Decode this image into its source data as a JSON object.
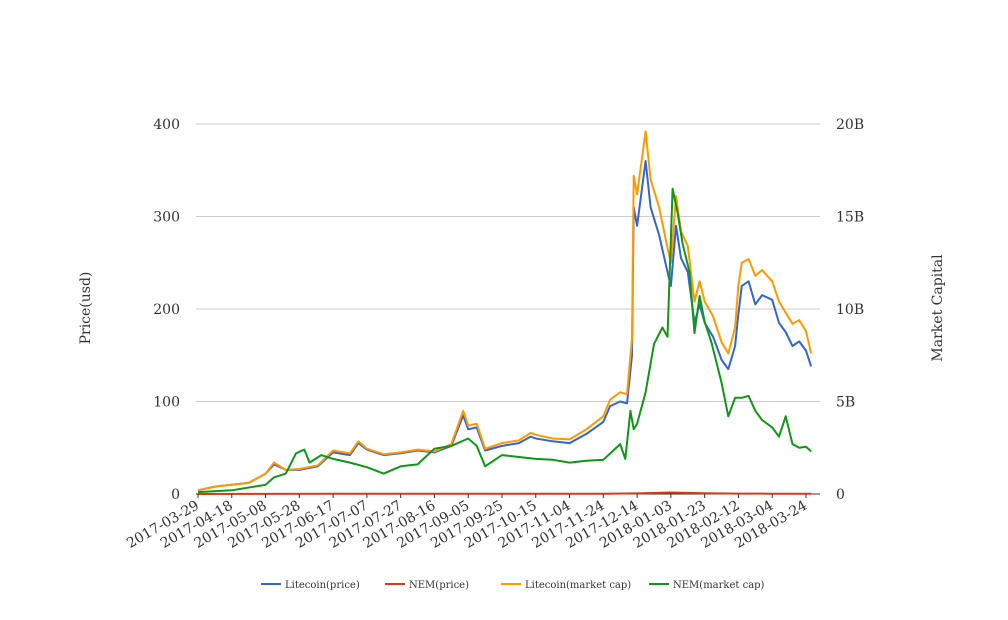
{
  "chart_data": {
    "type": "line",
    "ylabel_left": "Price(usd)",
    "ylabel_right": "Market Capital",
    "x_tick_labels": [
      "2017-03-29",
      "2017-04-18",
      "2017-05-08",
      "2017-05-28",
      "2017-06-17",
      "2017-07-07",
      "2017-07-27",
      "2017-08-16",
      "2017-09-05",
      "2017-09-25",
      "2017-10-15",
      "2017-11-04",
      "2017-11-24",
      "2017-12-14",
      "2018-01-03",
      "2018-01-23",
      "2018-02-12",
      "2018-03-04",
      "2018-03-24"
    ],
    "y_left": {
      "range": [
        0,
        400
      ],
      "ticks": [
        0,
        100,
        200,
        300,
        400
      ],
      "tick_labels": [
        "0",
        "100",
        "200",
        "300",
        "400"
      ]
    },
    "y_right": {
      "range": [
        0,
        20000000000
      ],
      "ticks": [
        0,
        5000000000,
        10000000000,
        15000000000,
        20000000000
      ],
      "tick_labels": [
        "0",
        "5B",
        "10B",
        "15B",
        "20B"
      ]
    },
    "grid": true,
    "legend_position": "bottom",
    "series": [
      {
        "name": "Litecoin(price)",
        "axis": "left",
        "color": "#3366cc",
        "points": [
          [
            "2017-03-29",
            4
          ],
          [
            "2017-04-08",
            8
          ],
          [
            "2017-04-18",
            10
          ],
          [
            "2017-04-28",
            12
          ],
          [
            "2017-05-08",
            22
          ],
          [
            "2017-05-13",
            32
          ],
          [
            "2017-05-20",
            26
          ],
          [
            "2017-05-28",
            26
          ],
          [
            "2017-06-08",
            30
          ],
          [
            "2017-06-17",
            45
          ],
          [
            "2017-06-27",
            42
          ],
          [
            "2017-07-02",
            55
          ],
          [
            "2017-07-07",
            48
          ],
          [
            "2017-07-17",
            42
          ],
          [
            "2017-07-27",
            44
          ],
          [
            "2017-08-06",
            47
          ],
          [
            "2017-08-16",
            45
          ],
          [
            "2017-08-26",
            52
          ],
          [
            "2017-09-02",
            85
          ],
          [
            "2017-09-05",
            70
          ],
          [
            "2017-09-10",
            72
          ],
          [
            "2017-09-15",
            47
          ],
          [
            "2017-09-25",
            52
          ],
          [
            "2017-10-05",
            55
          ],
          [
            "2017-10-12",
            62
          ],
          [
            "2017-10-15",
            60
          ],
          [
            "2017-10-25",
            57
          ],
          [
            "2017-11-04",
            55
          ],
          [
            "2017-11-14",
            65
          ],
          [
            "2017-11-24",
            78
          ],
          [
            "2017-11-28",
            95
          ],
          [
            "2017-12-04",
            100
          ],
          [
            "2017-12-08",
            98
          ],
          [
            "2017-12-11",
            150
          ],
          [
            "2017-12-12",
            310
          ],
          [
            "2017-12-14",
            290
          ],
          [
            "2017-12-19",
            360
          ],
          [
            "2017-12-22",
            310
          ],
          [
            "2017-12-27",
            280
          ],
          [
            "2018-01-01",
            240
          ],
          [
            "2018-01-03",
            225
          ],
          [
            "2018-01-06",
            290
          ],
          [
            "2018-01-09",
            255
          ],
          [
            "2018-01-13",
            240
          ],
          [
            "2018-01-17",
            185
          ],
          [
            "2018-01-20",
            205
          ],
          [
            "2018-01-23",
            185
          ],
          [
            "2018-01-28",
            170
          ],
          [
            "2018-02-02",
            145
          ],
          [
            "2018-02-06",
            135
          ],
          [
            "2018-02-10",
            160
          ],
          [
            "2018-02-12",
            195
          ],
          [
            "2018-02-14",
            225
          ],
          [
            "2018-02-18",
            230
          ],
          [
            "2018-02-22",
            205
          ],
          [
            "2018-02-26",
            215
          ],
          [
            "2018-03-04",
            210
          ],
          [
            "2018-03-08",
            185
          ],
          [
            "2018-03-12",
            175
          ],
          [
            "2018-03-16",
            160
          ],
          [
            "2018-03-20",
            165
          ],
          [
            "2018-03-24",
            155
          ],
          [
            "2018-03-27",
            138
          ]
        ]
      },
      {
        "name": "NEM(price)",
        "axis": "left",
        "color": "#dc3912",
        "points": [
          [
            "2017-03-29",
            0.01
          ],
          [
            "2017-06-17",
            0.2
          ],
          [
            "2017-09-05",
            0.25
          ],
          [
            "2017-11-24",
            0.25
          ],
          [
            "2017-12-14",
            0.6
          ],
          [
            "2018-01-03",
            1.6
          ],
          [
            "2018-01-23",
            0.8
          ],
          [
            "2018-02-12",
            0.45
          ],
          [
            "2018-03-04",
            0.35
          ],
          [
            "2018-03-27",
            0.2
          ]
        ]
      },
      {
        "name": "Litecoin(market cap)",
        "axis": "right",
        "color": "#ff9900",
        "points": [
          [
            "2017-03-29",
            200000000
          ],
          [
            "2017-04-08",
            400000000
          ],
          [
            "2017-04-18",
            500000000
          ],
          [
            "2017-04-28",
            600000000
          ],
          [
            "2017-05-08",
            1100000000
          ],
          [
            "2017-05-13",
            1700000000
          ],
          [
            "2017-05-20",
            1300000000
          ],
          [
            "2017-05-28",
            1350000000
          ],
          [
            "2017-06-08",
            1550000000
          ],
          [
            "2017-06-17",
            2350000000
          ],
          [
            "2017-06-27",
            2200000000
          ],
          [
            "2017-07-02",
            2850000000
          ],
          [
            "2017-07-07",
            2450000000
          ],
          [
            "2017-07-17",
            2150000000
          ],
          [
            "2017-07-27",
            2250000000
          ],
          [
            "2017-08-06",
            2400000000
          ],
          [
            "2017-08-16",
            2300000000
          ],
          [
            "2017-08-26",
            2700000000
          ],
          [
            "2017-09-02",
            4500000000
          ],
          [
            "2017-09-05",
            3700000000
          ],
          [
            "2017-09-10",
            3800000000
          ],
          [
            "2017-09-15",
            2450000000
          ],
          [
            "2017-09-25",
            2750000000
          ],
          [
            "2017-10-05",
            2900000000
          ],
          [
            "2017-10-12",
            3300000000
          ],
          [
            "2017-10-15",
            3200000000
          ],
          [
            "2017-10-25",
            3000000000
          ],
          [
            "2017-11-04",
            2950000000
          ],
          [
            "2017-11-14",
            3500000000
          ],
          [
            "2017-11-24",
            4200000000
          ],
          [
            "2017-11-28",
            5100000000
          ],
          [
            "2017-12-04",
            5500000000
          ],
          [
            "2017-12-08",
            5400000000
          ],
          [
            "2017-12-11",
            8400000000
          ],
          [
            "2017-12-12",
            17200000000
          ],
          [
            "2017-12-14",
            16200000000
          ],
          [
            "2017-12-19",
            19600000000
          ],
          [
            "2017-12-22",
            17000000000
          ],
          [
            "2017-12-27",
            15500000000
          ],
          [
            "2018-01-01",
            13300000000
          ],
          [
            "2018-01-03",
            12500000000
          ],
          [
            "2018-01-06",
            16100000000
          ],
          [
            "2018-01-09",
            14200000000
          ],
          [
            "2018-01-13",
            13400000000
          ],
          [
            "2018-01-17",
            10400000000
          ],
          [
            "2018-01-20",
            11500000000
          ],
          [
            "2018-01-23",
            10400000000
          ],
          [
            "2018-01-28",
            9600000000
          ],
          [
            "2018-02-02",
            8200000000
          ],
          [
            "2018-02-06",
            7600000000
          ],
          [
            "2018-02-10",
            9000000000
          ],
          [
            "2018-02-12",
            11300000000
          ],
          [
            "2018-02-14",
            12500000000
          ],
          [
            "2018-02-18",
            12700000000
          ],
          [
            "2018-02-22",
            11800000000
          ],
          [
            "2018-02-26",
            12100000000
          ],
          [
            "2018-03-04",
            11500000000
          ],
          [
            "2018-03-08",
            10400000000
          ],
          [
            "2018-03-12",
            9800000000
          ],
          [
            "2018-03-16",
            9200000000
          ],
          [
            "2018-03-20",
            9400000000
          ],
          [
            "2018-03-24",
            8800000000
          ],
          [
            "2018-03-27",
            7600000000
          ]
        ]
      },
      {
        "name": "NEM(market cap)",
        "axis": "right",
        "color": "#109618",
        "points": [
          [
            "2017-03-29",
            100000000
          ],
          [
            "2017-04-18",
            200000000
          ],
          [
            "2017-05-08",
            500000000
          ],
          [
            "2017-05-13",
            900000000
          ],
          [
            "2017-05-20",
            1100000000
          ],
          [
            "2017-05-26",
            2200000000
          ],
          [
            "2017-05-31",
            2400000000
          ],
          [
            "2017-06-03",
            1700000000
          ],
          [
            "2017-06-10",
            2100000000
          ],
          [
            "2017-06-17",
            1900000000
          ],
          [
            "2017-06-27",
            1700000000
          ],
          [
            "2017-07-07",
            1450000000
          ],
          [
            "2017-07-17",
            1100000000
          ],
          [
            "2017-07-27",
            1500000000
          ],
          [
            "2017-08-06",
            1600000000
          ],
          [
            "2017-08-16",
            2450000000
          ],
          [
            "2017-08-26",
            2600000000
          ],
          [
            "2017-09-05",
            3000000000
          ],
          [
            "2017-09-10",
            2600000000
          ],
          [
            "2017-09-15",
            1500000000
          ],
          [
            "2017-09-25",
            2100000000
          ],
          [
            "2017-10-05",
            2000000000
          ],
          [
            "2017-10-15",
            1900000000
          ],
          [
            "2017-10-25",
            1850000000
          ],
          [
            "2017-11-04",
            1700000000
          ],
          [
            "2017-11-14",
            1800000000
          ],
          [
            "2017-11-24",
            1850000000
          ],
          [
            "2017-12-04",
            2700000000
          ],
          [
            "2017-12-07",
            1900000000
          ],
          [
            "2017-12-10",
            4500000000
          ],
          [
            "2017-12-12",
            3500000000
          ],
          [
            "2017-12-14",
            3800000000
          ],
          [
            "2017-12-19",
            5500000000
          ],
          [
            "2017-12-24",
            8100000000
          ],
          [
            "2017-12-29",
            9000000000
          ],
          [
            "2018-01-01",
            8500000000
          ],
          [
            "2018-01-04",
            16500000000
          ],
          [
            "2018-01-07",
            15200000000
          ],
          [
            "2018-01-10",
            13500000000
          ],
          [
            "2018-01-14",
            12000000000
          ],
          [
            "2018-01-17",
            8700000000
          ],
          [
            "2018-01-20",
            10700000000
          ],
          [
            "2018-01-23",
            9300000000
          ],
          [
            "2018-01-27",
            8200000000
          ],
          [
            "2018-02-02",
            6000000000
          ],
          [
            "2018-02-06",
            4200000000
          ],
          [
            "2018-02-10",
            5200000000
          ],
          [
            "2018-02-14",
            5200000000
          ],
          [
            "2018-02-18",
            5300000000
          ],
          [
            "2018-02-22",
            4500000000
          ],
          [
            "2018-02-26",
            4000000000
          ],
          [
            "2018-03-04",
            3600000000
          ],
          [
            "2018-03-08",
            3100000000
          ],
          [
            "2018-03-12",
            4200000000
          ],
          [
            "2018-03-16",
            2700000000
          ],
          [
            "2018-03-20",
            2500000000
          ],
          [
            "2018-03-24",
            2550000000
          ],
          [
            "2018-03-27",
            2300000000
          ]
        ]
      }
    ]
  }
}
